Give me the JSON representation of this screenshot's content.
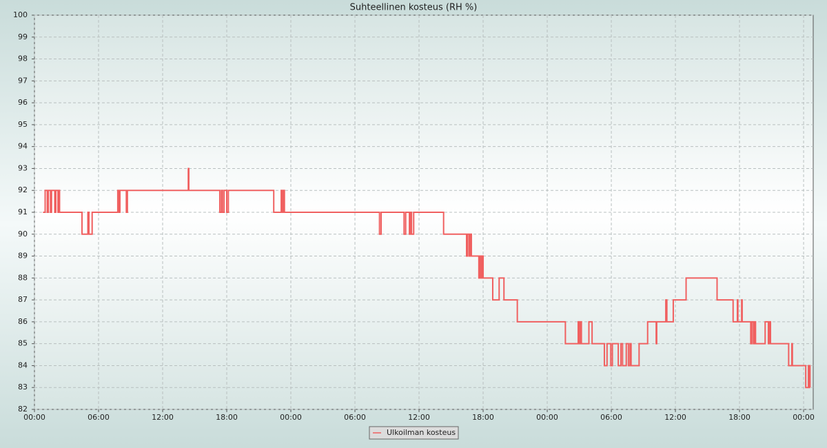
{
  "chart_data": {
    "type": "line",
    "title": "Suhteellinen kosteus (RH %)",
    "step": "post",
    "grid": true,
    "legend": "bottom",
    "x": [
      0.8,
      1.0,
      1.2,
      1.3,
      1.5,
      1.6,
      1.9,
      2.0,
      2.2,
      2.3,
      2.35,
      4.45,
      5.0,
      5.1,
      5.4,
      7.8,
      7.9,
      8.0,
      8.6,
      8.7,
      14.4,
      14.45,
      17.35,
      17.5,
      17.6,
      17.75,
      18.0,
      18.15,
      22.4,
      23.1,
      23.2,
      23.3,
      23.4,
      32.3,
      32.45,
      34.6,
      34.75,
      35.1,
      35.2,
      35.3,
      35.5,
      38.3,
      40.45,
      40.55,
      40.7,
      40.8,
      40.9,
      41.6,
      41.7,
      41.8,
      41.9,
      42.0,
      42.9,
      43.5,
      43.95,
      45.2,
      49.7,
      50.9,
      51.0,
      51.1,
      51.2,
      51.9,
      52.2,
      53.35,
      53.6,
      53.95,
      54.1,
      54.65,
      54.9,
      55.05,
      55.4,
      55.6,
      55.75,
      55.85,
      56.6,
      57.4,
      58.2,
      58.25,
      59.1,
      59.2,
      59.8,
      61.0,
      63.9,
      65.4,
      65.8,
      65.85,
      66.2,
      66.25,
      67.05,
      67.15,
      67.3,
      67.4,
      67.5,
      68.4,
      68.7,
      68.8,
      68.9,
      70.6,
      70.9,
      70.95,
      72.2,
      72.45,
      72.5,
      72.55,
      72.6
    ],
    "series": [
      {
        "name": "Ulkoilman kosteus",
        "color": "#f06060",
        "values": [
          91,
          92,
          91,
          92,
          91,
          92,
          91,
          92,
          91,
          92,
          91,
          90,
          91,
          90,
          91,
          92,
          91,
          92,
          91,
          92,
          93,
          92,
          91,
          92,
          91,
          92,
          91,
          92,
          91,
          92,
          91,
          92,
          91,
          90,
          91,
          90,
          91,
          90,
          91,
          90,
          91,
          90,
          89,
          90,
          89,
          90,
          89,
          88,
          89,
          88,
          89,
          88,
          87,
          88,
          87,
          86,
          85,
          86,
          85,
          86,
          85,
          86,
          85,
          84,
          85,
          84,
          85,
          84,
          85,
          84,
          85,
          84,
          85,
          84,
          85,
          86,
          85,
          86,
          87,
          86,
          87,
          88,
          87,
          86,
          87,
          86,
          87,
          86,
          85,
          86,
          85,
          86,
          85,
          86,
          85,
          86,
          85,
          84,
          85,
          84,
          83,
          84,
          83,
          84,
          83
        ]
      }
    ],
    "xlim": [
      0,
      72.9
    ],
    "xticks": [
      {
        "value": 0,
        "label": "00:00"
      },
      {
        "value": 6,
        "label": "06:00"
      },
      {
        "value": 12,
        "label": "12:00"
      },
      {
        "value": 18,
        "label": "18:00"
      },
      {
        "value": 24,
        "label": "00:00"
      },
      {
        "value": 30,
        "label": "06:00"
      },
      {
        "value": 36,
        "label": "12:00"
      },
      {
        "value": 42,
        "label": "18:00"
      },
      {
        "value": 48,
        "label": "00:00"
      },
      {
        "value": 54,
        "label": "06:00"
      },
      {
        "value": 60,
        "label": "12:00"
      },
      {
        "value": 66,
        "label": "18:00"
      },
      {
        "value": 72,
        "label": "00:00"
      }
    ],
    "ylim": [
      82,
      100
    ],
    "yticks": [
      82,
      83,
      84,
      85,
      86,
      87,
      88,
      89,
      90,
      91,
      92,
      93,
      94,
      95,
      96,
      97,
      98,
      99,
      100
    ]
  }
}
